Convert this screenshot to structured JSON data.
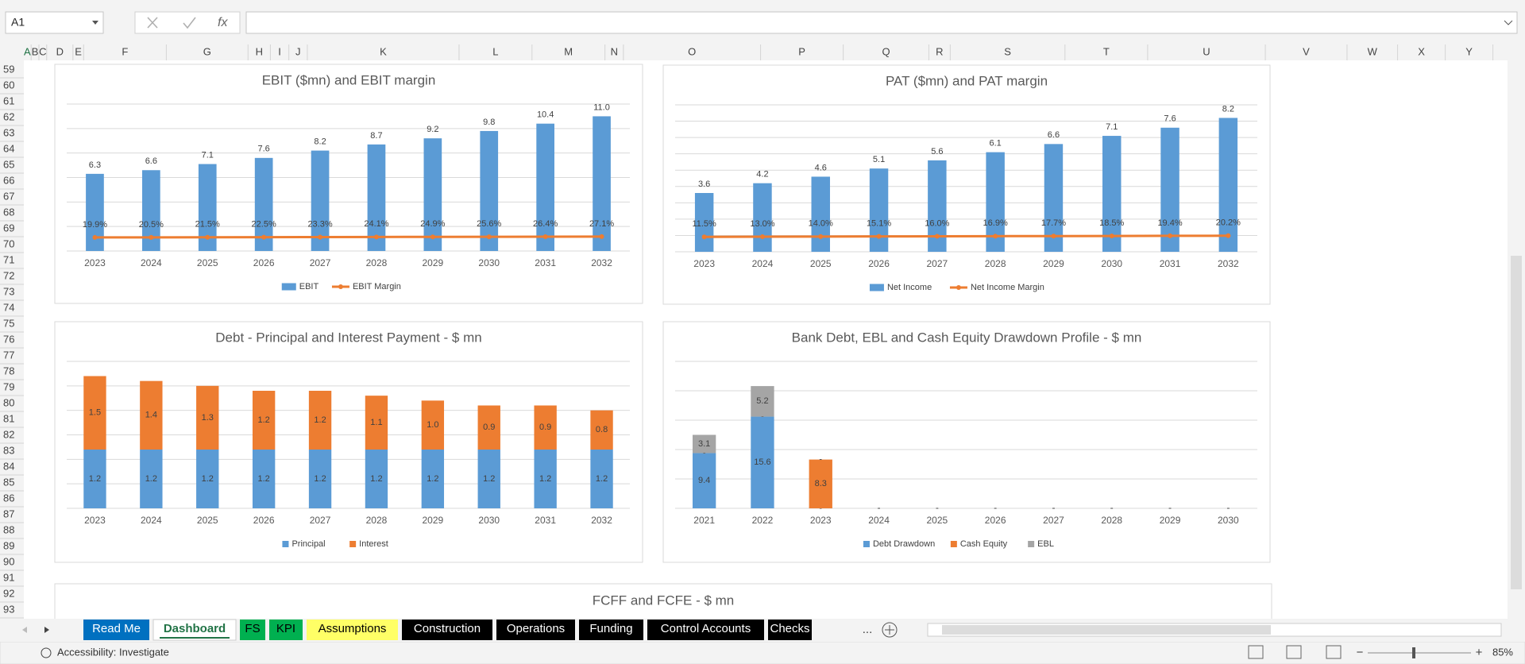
{
  "formula_bar": {
    "name_box": "A1"
  },
  "columns": [
    "A",
    "B",
    "C",
    "D",
    "E",
    "F",
    "G",
    "H",
    "I",
    "J",
    "K",
    "L",
    "M",
    "N",
    "O",
    "P",
    "Q",
    "R",
    "S",
    "T",
    "U",
    "V",
    "W",
    "X",
    "Y"
  ],
  "rows": [
    59,
    60,
    61,
    62,
    63,
    64,
    65,
    66,
    67,
    68,
    69,
    70,
    71,
    72,
    73,
    74,
    75,
    76,
    77,
    78,
    79,
    80,
    81,
    82,
    83,
    84,
    85,
    86,
    87,
    88,
    89,
    90,
    91,
    92,
    93
  ],
  "charts": [
    {
      "type": "bar_line",
      "title": "EBIT ($mn) and EBIT margin",
      "categories": [
        "2023",
        "2024",
        "2025",
        "2026",
        "2027",
        "2028",
        "2029",
        "2030",
        "2031",
        "2032"
      ],
      "series": [
        {
          "name": "EBIT",
          "type": "bar",
          "color": "#5b9bd5",
          "values": [
            6.3,
            6.6,
            7.1,
            7.6,
            8.2,
            8.7,
            9.2,
            9.8,
            10.4,
            11.0
          ],
          "value_labels": [
            "6.3",
            "6.6",
            "7.1",
            "7.6",
            "8.2",
            "8.7",
            "9.2",
            "9.8",
            "10.4",
            "11.0"
          ]
        },
        {
          "name": "EBIT Margin",
          "type": "line",
          "axis": "y2",
          "color": "#ed7d31",
          "values": [
            0.199,
            0.205,
            0.215,
            0.225,
            0.233,
            0.241,
            0.249,
            0.256,
            0.264,
            0.271
          ],
          "value_labels": [
            "19.9%",
            "20.5%",
            "21.5%",
            "22.5%",
            "23.3%",
            "24.1%",
            "24.9%",
            "25.6%",
            "26.4%",
            "27.1%"
          ]
        }
      ],
      "ylim": [
        0,
        12
      ],
      "yticks": [
        0,
        2,
        4,
        6,
        8,
        10,
        12
      ],
      "y2lim": [
        -1,
        12
      ],
      "grid": true,
      "legend": "bottom"
    },
    {
      "type": "bar_line",
      "title": "PAT ($mn) and PAT margin",
      "categories": [
        "2023",
        "2024",
        "2025",
        "2026",
        "2027",
        "2028",
        "2029",
        "2030",
        "2031",
        "2032"
      ],
      "series": [
        {
          "name": "Net Income",
          "type": "bar",
          "color": "#5b9bd5",
          "values": [
            3.6,
            4.2,
            4.6,
            5.1,
            5.6,
            6.1,
            6.6,
            7.1,
            7.6,
            8.2
          ],
          "value_labels": [
            "3.6",
            "4.2",
            "4.6",
            "5.1",
            "5.6",
            "6.1",
            "6.6",
            "7.1",
            "7.6",
            "8.2"
          ]
        },
        {
          "name": "Net Income Margin",
          "type": "line",
          "axis": "y2",
          "color": "#ed7d31",
          "values": [
            0.115,
            0.13,
            0.14,
            0.151,
            0.16,
            0.169,
            0.177,
            0.185,
            0.194,
            0.202
          ],
          "value_labels": [
            "11.5%",
            "13.0%",
            "14.0%",
            "15.1%",
            "16.0%",
            "16.9%",
            "17.7%",
            "18.5%",
            "19.4%",
            "20.2%"
          ]
        }
      ],
      "ylim": [
        0,
        9
      ],
      "yticks": [
        0,
        1,
        2,
        3,
        4,
        5,
        6,
        7,
        8,
        9
      ],
      "y2lim": [
        -1,
        10
      ],
      "grid": true,
      "legend": "bottom"
    },
    {
      "type": "stacked_bar",
      "title": "Debt - Principal and Interest Payment - $ mn",
      "categories": [
        "2023",
        "2024",
        "2025",
        "2026",
        "2027",
        "2028",
        "2029",
        "2030",
        "2031",
        "2032"
      ],
      "series": [
        {
          "name": "Principal",
          "color": "#5b9bd5",
          "values": [
            1.2,
            1.2,
            1.2,
            1.2,
            1.2,
            1.2,
            1.2,
            1.2,
            1.2,
            1.2
          ],
          "value_labels": [
            "1.2",
            "1.2",
            "1.2",
            "1.2",
            "1.2",
            "1.2",
            "1.2",
            "1.2",
            "1.2",
            "1.2"
          ]
        },
        {
          "name": "Interest",
          "color": "#ed7d31",
          "values": [
            1.5,
            1.4,
            1.3,
            1.2,
            1.2,
            1.1,
            1.0,
            0.9,
            0.9,
            0.8
          ],
          "value_labels": [
            "1.5",
            "1.4",
            "1.3",
            "1.2",
            "1.2",
            "1.1",
            "1.0",
            "0.9",
            "0.9",
            "0.8"
          ]
        }
      ],
      "ylim": [
        0,
        3
      ],
      "yticks": [
        0,
        0.5,
        1,
        1.5,
        2,
        2.5,
        3
      ],
      "grid": true,
      "legend": "bottom"
    },
    {
      "type": "stacked_bar",
      "title": "Bank Debt, EBL and Cash Equity Drawdown Profile - $ mn",
      "categories": [
        "2021",
        "2022",
        "2023",
        "2024",
        "2025",
        "2026",
        "2027",
        "2028",
        "2029",
        "2030"
      ],
      "series": [
        {
          "name": "Debt Drawdown",
          "color": "#5b9bd5",
          "values": [
            9.4,
            15.6,
            0,
            0,
            0,
            0,
            0,
            0,
            0,
            0
          ],
          "value_labels": [
            "9.4",
            "15.6",
            "-",
            "-",
            "-",
            "-",
            "-",
            "-",
            "-",
            "-"
          ]
        },
        {
          "name": "Cash Equity",
          "color": "#ed7d31",
          "values": [
            0,
            0,
            8.3,
            0,
            0,
            0,
            0,
            0,
            0,
            0
          ],
          "value_labels": [
            "-",
            "-",
            "8.3",
            "-",
            "-",
            "-",
            "-",
            "-",
            "-",
            "-"
          ]
        },
        {
          "name": "EBL",
          "color": "#a5a5a5",
          "values": [
            3.1,
            5.2,
            0,
            0,
            0,
            0,
            0,
            0,
            0,
            0
          ],
          "value_labels": [
            "3.1",
            "5.2",
            "-",
            "-",
            "-",
            "-",
            "-",
            "-",
            "-",
            "-"
          ]
        }
      ],
      "ylim": [
        0,
        25
      ],
      "yticks": [
        0,
        5,
        10,
        15,
        20,
        25
      ],
      "grid": true,
      "legend": "bottom"
    }
  ],
  "partial_chart": {
    "title": "FCFF and FCFE - $ mn"
  },
  "sheet_tabs": [
    {
      "name": "Read Me",
      "bg": "#0070c0",
      "fg": "#ffffff"
    },
    {
      "name": "Dashboard",
      "bg": "#ffffff",
      "fg": "#217346",
      "active": true
    },
    {
      "name": "FS",
      "bg": "#00b050",
      "fg": "#000000"
    },
    {
      "name": "KPI",
      "bg": "#00b050",
      "fg": "#000000"
    },
    {
      "name": "Assumptions",
      "bg": "#ffff66",
      "fg": "#000000"
    },
    {
      "name": "Construction",
      "bg": "#000000",
      "fg": "#ffffff"
    },
    {
      "name": "Operations",
      "bg": "#000000",
      "fg": "#ffffff"
    },
    {
      "name": "Funding",
      "bg": "#000000",
      "fg": "#ffffff"
    },
    {
      "name": "Control Accounts",
      "bg": "#000000",
      "fg": "#ffffff"
    },
    {
      "name": "Checks",
      "bg": "#000000",
      "fg": "#ffffff"
    }
  ],
  "status_bar": {
    "accessibility": "Accessibility: Investigate",
    "zoom": "85%"
  }
}
